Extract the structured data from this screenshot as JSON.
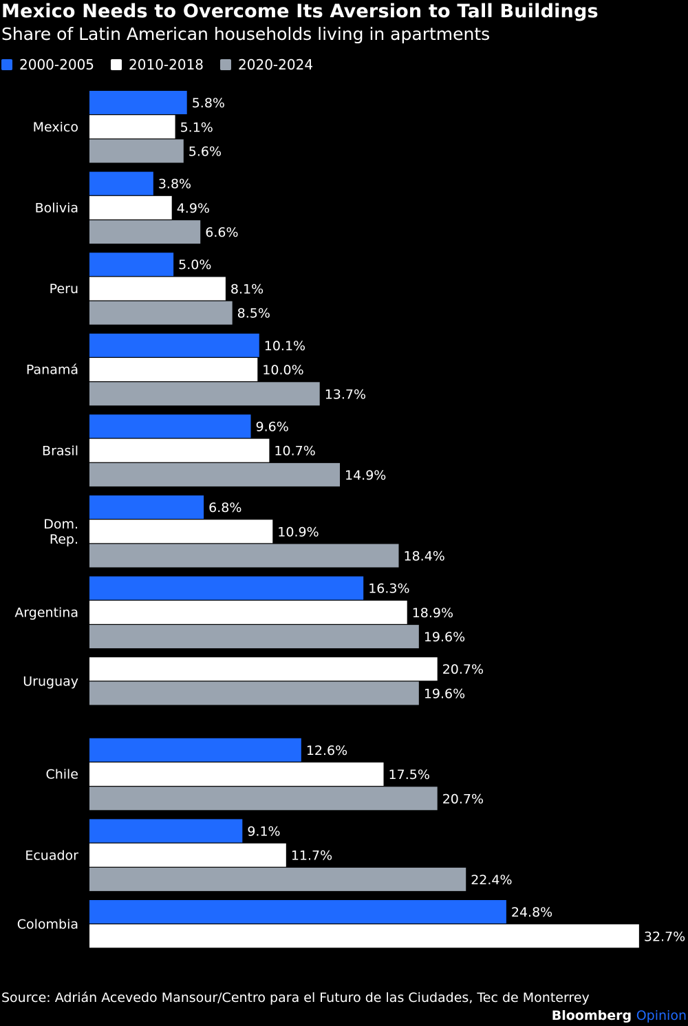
{
  "chart_data": {
    "type": "bar",
    "orientation": "horizontal",
    "title": "Mexico Needs to Overcome Its Aversion to Tall Buildings",
    "subtitle": "Share of Latin American households living in apartments",
    "categories": [
      "Mexico",
      "Bolivia",
      "Peru",
      "Panamá",
      "Brasil",
      "Dom.\nRep.",
      "Argentina",
      "Uruguay",
      "Chile",
      "Ecuador",
      "Colombia"
    ],
    "series": [
      {
        "name": "2000-2005",
        "color": "#1f6aff",
        "values": [
          5.8,
          3.8,
          5.0,
          10.1,
          9.6,
          6.8,
          16.3,
          null,
          12.6,
          9.1,
          24.8
        ]
      },
      {
        "name": "2010-2018",
        "color": "#ffffff",
        "values": [
          5.1,
          4.9,
          8.1,
          10.0,
          10.7,
          10.9,
          18.9,
          20.7,
          17.5,
          11.7,
          32.7
        ]
      },
      {
        "name": "2020-2024",
        "color": "#9aa4b0",
        "values": [
          5.6,
          6.6,
          8.5,
          13.7,
          14.9,
          18.4,
          19.6,
          19.6,
          20.7,
          22.4,
          null
        ]
      }
    ],
    "value_suffix": "%",
    "xlim": [
      0,
      32.7
    ],
    "grid": false,
    "legend_position": "top-left"
  },
  "footer": {
    "source": "Source: Adrián Acevedo Mansour/Centro para el Futuro de las Ciudades, Tec de Monterrey",
    "brand_main": "Bloomberg",
    "brand_accent": "Opinion"
  }
}
